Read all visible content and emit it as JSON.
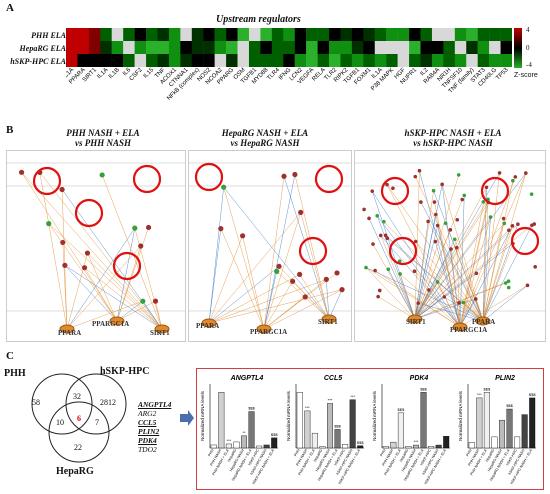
{
  "panel_labels": [
    "A",
    "B",
    "C"
  ],
  "upstream": {
    "title": "Upstream regulators",
    "rows": [
      "PHH ELA",
      "HepaRG ELA",
      "hSKP-HPC ELA"
    ],
    "cols": [
      "PPARGC1A",
      "PPARA",
      "SIRT1",
      "IL1A",
      "IL1B",
      "IL6",
      "CSF2",
      "IL15",
      "TNF",
      "ACOX1",
      "CTNNA1",
      "NFkB (complex)",
      "NOS2",
      "NCOA2",
      "PPARG",
      "OSM",
      "TGFB1",
      "MYD88",
      "TLR4",
      "IFNG",
      "LCN2",
      "VEGFA",
      "RELA",
      "TLR2",
      "RIPK2",
      "TGFB1",
      "FOXM1",
      "IL1A",
      "P38 MAPK",
      "HGF",
      "NUPR1",
      "IL2",
      "RAB4A",
      "NR1H",
      "TNFSF10",
      "TNF (family)",
      "STAT3",
      "CD40LG",
      "TP53"
    ],
    "legend": {
      "max": "4",
      "mid": "0",
      "min": "-4",
      "label": "Z-score"
    }
  },
  "networks": [
    {
      "title1": "PHH NASH + ELA",
      "title2": "vs PHH NASH",
      "bottom": [
        "PPARA",
        "PPARGC1A",
        "SIRT1"
      ]
    },
    {
      "title1": "HepaRG NASH + ELA",
      "title2": "vs HepaRG NASH",
      "bottom": [
        "PPARA",
        "PPARGC1A",
        "SIRT1"
      ]
    },
    {
      "title1": "hSKP-HPC NASH + ELA",
      "title2": "vs hSKP-HPC NASH",
      "bottom": [
        "SIRT1",
        "PPARGC1A",
        "PPARA"
      ]
    }
  ],
  "venn": {
    "sets": [
      "PHH",
      "hSKP-HPC",
      "HepaRG"
    ],
    "counts": {
      "phh_only": "58",
      "phh_skp": "32",
      "skp_only": "2812",
      "phh_rg": "10",
      "center": "6",
      "skp_rg": "7",
      "rg_only": "22"
    },
    "genes": [
      "ANGPTL4",
      "ARG2",
      "CCL5",
      "PLIN2",
      "PDK4",
      "TDO2"
    ]
  },
  "bar_charts": {
    "ylabel": "Normalized mRNA levels",
    "groups": [
      "PHH",
      "PHH NASH",
      "PHH NASH + ELA",
      "HepaRG",
      "HepaRG NASH",
      "HepaRG NASH + ELA",
      "hSKP-HPC",
      "hSKP-HPC NASH",
      "hSKP-HPC NASH + ELA"
    ],
    "charts": [
      {
        "gene": "ANGPTL4",
        "values": [
          0.3,
          5.5,
          0.4,
          0.6,
          1.2,
          3.6,
          0.2,
          0.3,
          1.0
        ],
        "stars": [
          "",
          "",
          "***",
          "",
          "**",
          "$$$",
          "",
          "",
          "$$$"
        ]
      },
      {
        "gene": "CCL5",
        "values": [
          7.5,
          5.0,
          2.0,
          0.2,
          6.0,
          2.5,
          0.5,
          6.5,
          0.3
        ],
        "stars": [
          "",
          "***",
          "",
          "",
          "***",
          "$$$",
          "",
          "***",
          "$$$"
        ]
      },
      {
        "gene": "PDK4",
        "values": [
          0.3,
          1.0,
          6.0,
          0.3,
          0.5,
          9.5,
          0.3,
          0.5,
          2.0
        ],
        "stars": [
          "",
          "",
          "$$$",
          "",
          "***",
          "$$$",
          "",
          "",
          ""
        ]
      },
      {
        "gene": "PLIN2",
        "values": [
          0.5,
          4.5,
          5.0,
          1.0,
          2.5,
          3.5,
          1.0,
          3.0,
          4.5
        ],
        "stars": [
          "",
          "***",
          "$$$",
          "",
          "",
          "$$$",
          "",
          "",
          "$$$"
        ]
      }
    ]
  }
}
